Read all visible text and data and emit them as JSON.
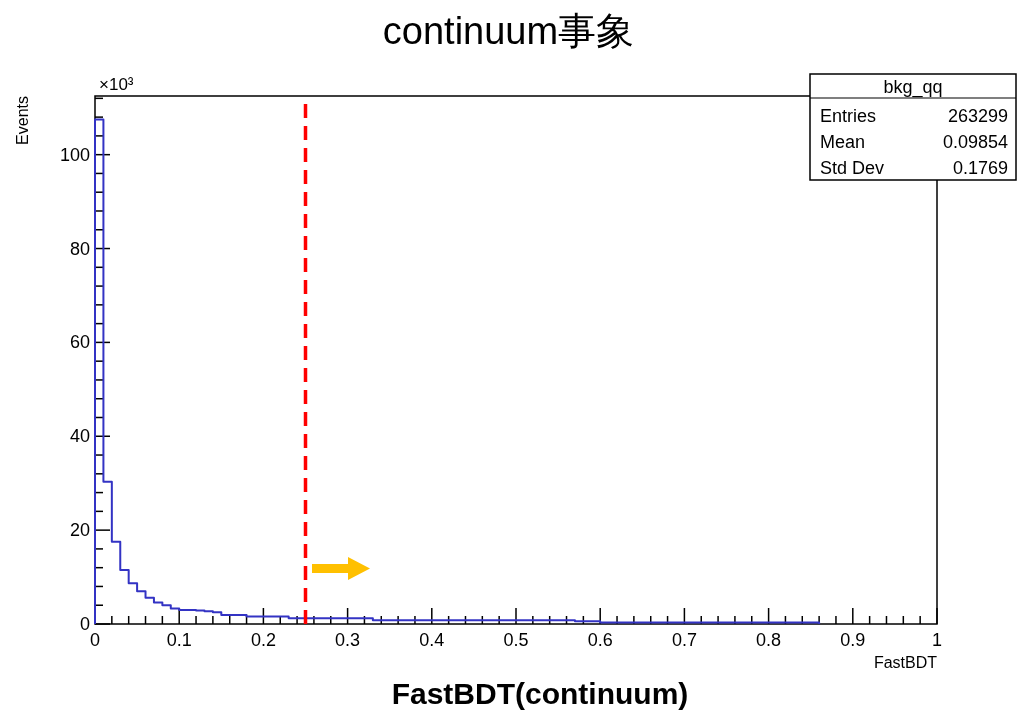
{
  "chart_data": {
    "type": "histogram",
    "title": "continuum事象",
    "xlabel": "FastBDT",
    "ylabel": "Events",
    "color": "#3333c4",
    "bins": [
      0,
      0.01,
      0.02,
      0.03,
      0.04,
      0.05,
      0.06,
      0.07,
      0.08,
      0.09,
      0.1,
      0.12,
      0.13,
      0.14,
      0.15,
      0.18,
      0.23,
      0.33,
      0.57,
      0.6,
      0.86
    ],
    "values": [
      107.5,
      30.3,
      17.5,
      11.5,
      8.7,
      7.0,
      5.6,
      4.6,
      4.0,
      3.3,
      3.0,
      2.9,
      2.7,
      2.5,
      1.9,
      1.6,
      1.2,
      0.8,
      0.6,
      0.3
    ],
    "xlim": [
      0,
      1
    ],
    "ylim": [
      0,
      112.5
    ],
    "xticks": [
      0,
      0.1,
      0.2,
      0.3,
      0.4,
      0.5,
      0.6,
      0.7,
      0.8,
      0.9,
      1
    ],
    "yticks": [
      0,
      {
        "value": 4,
        "label": null
      },
      {
        "value": 8,
        "label": null
      },
      {
        "value": 12,
        "label": null
      },
      {
        "value": 16,
        "label": null
      },
      20,
      {
        "value": 24,
        "label": null
      },
      {
        "value": 28,
        "label": null
      },
      {
        "value": 32,
        "label": null
      },
      {
        "value": 36,
        "label": null
      },
      40,
      {
        "value": 44,
        "label": null
      },
      {
        "value": 48,
        "label": null
      },
      {
        "value": 52,
        "label": null
      },
      {
        "value": 56,
        "label": null
      },
      60,
      {
        "value": 64,
        "label": null
      },
      {
        "value": 68,
        "label": null
      },
      {
        "value": 72,
        "label": null
      },
      {
        "value": 76,
        "label": null
      },
      80,
      {
        "value": 84,
        "label": null
      },
      {
        "value": 88,
        "label": null
      },
      {
        "value": 92,
        "label": null
      },
      {
        "value": 96,
        "label": null
      },
      100,
      {
        "value": 104,
        "label": null
      },
      {
        "value": 108,
        "label": null
      },
      {
        "value": 112,
        "label": null
      }
    ],
    "ref_lines": [
      {
        "axis": "x",
        "value": 0.25,
        "color": "#ff0000",
        "line_style": "dashed"
      }
    ],
    "annotations": [
      "×10³",
      "bkg_qq",
      "Entries",
      "263299",
      "Mean",
      "0.09854",
      "Std Dev",
      "0.1769",
      "FastBDT(continuum)"
    ]
  }
}
